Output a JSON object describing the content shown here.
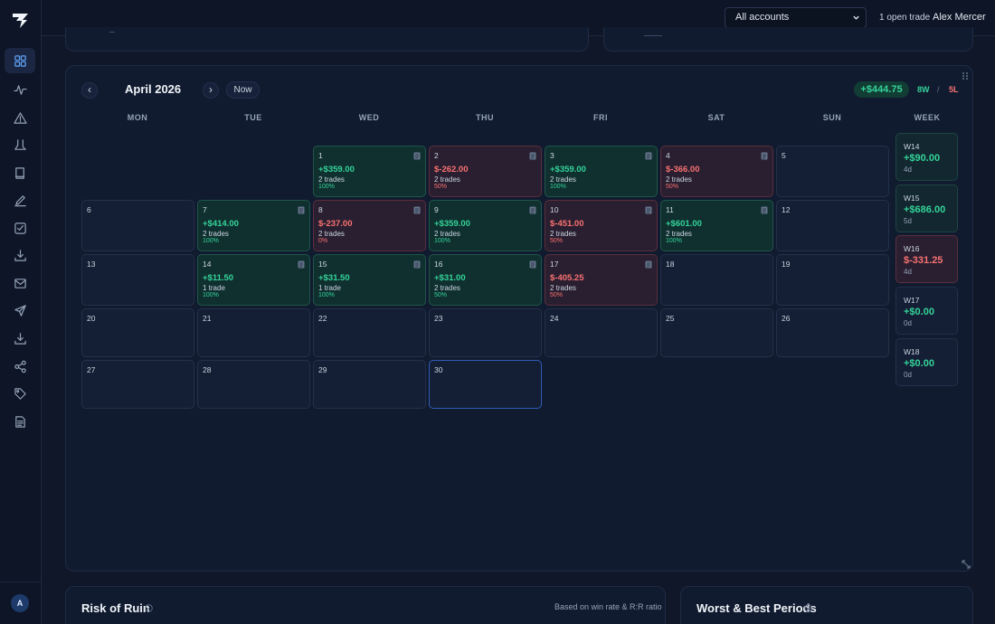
{
  "topbar": {
    "account_select": "All accounts",
    "open_trade": "1 open trade",
    "user_name": "Alex Mercer"
  },
  "sidebar": {
    "avatar_initial": "A",
    "items": [
      {
        "icon": "grid-icon",
        "active": true
      },
      {
        "icon": "activity-icon",
        "active": false
      },
      {
        "icon": "warning-triangle-icon",
        "active": false
      },
      {
        "icon": "flask-icon",
        "active": false
      },
      {
        "icon": "book-icon",
        "active": false
      },
      {
        "icon": "pencil-icon",
        "active": false
      },
      {
        "icon": "checkbox-icon",
        "active": false
      },
      {
        "icon": "download-icon",
        "active": false
      },
      {
        "icon": "mail-icon",
        "active": false
      },
      {
        "icon": "send-icon",
        "active": false
      },
      {
        "icon": "import-icon",
        "active": false
      },
      {
        "icon": "share-icon",
        "active": false
      },
      {
        "icon": "tag-icon",
        "active": false
      },
      {
        "icon": "document-icon",
        "active": false
      }
    ]
  },
  "calendar": {
    "prev": "‹",
    "next": "›",
    "month": "April 2026",
    "now_label": "Now",
    "total": "+$444.75",
    "wins": "8W",
    "slash": "/",
    "losses": "5L",
    "days_of_week": [
      "MON",
      "TUE",
      "WED",
      "THU",
      "FRI",
      "SAT",
      "SUN",
      "WEEK"
    ],
    "days": [
      {
        "day": "1",
        "pnl": "+$359.00",
        "trades": "2 trades",
        "rate": "100%",
        "result": "win"
      },
      {
        "day": "2",
        "pnl": "$-262.00",
        "trades": "2 trades",
        "rate": "50%",
        "result": "loss"
      },
      {
        "day": "3",
        "pnl": "+$359.00",
        "trades": "2 trades",
        "rate": "100%",
        "result": "win"
      },
      {
        "day": "4",
        "pnl": "$-366.00",
        "trades": "2 trades",
        "rate": "50%",
        "result": "loss"
      },
      {
        "day": "5"
      },
      {
        "day": "6"
      },
      {
        "day": "7",
        "pnl": "+$414.00",
        "trades": "2 trades",
        "rate": "100%",
        "result": "win"
      },
      {
        "day": "8",
        "pnl": "$-237.00",
        "trades": "2 trades",
        "rate": "0%",
        "result": "loss"
      },
      {
        "day": "9",
        "pnl": "+$359.00",
        "trades": "2 trades",
        "rate": "100%",
        "result": "win"
      },
      {
        "day": "10",
        "pnl": "$-451.00",
        "trades": "2 trades",
        "rate": "50%",
        "result": "loss"
      },
      {
        "day": "11",
        "pnl": "+$601.00",
        "trades": "2 trades",
        "rate": "100%",
        "result": "win"
      },
      {
        "day": "12"
      },
      {
        "day": "13"
      },
      {
        "day": "14",
        "pnl": "+$11.50",
        "trades": "1 trade",
        "rate": "100%",
        "result": "win"
      },
      {
        "day": "15",
        "pnl": "+$31.50",
        "trades": "1 trade",
        "rate": "100%",
        "result": "win"
      },
      {
        "day": "16",
        "pnl": "+$31.00",
        "trades": "2 trades",
        "rate": "50%",
        "result": "win"
      },
      {
        "day": "17",
        "pnl": "$-405.25",
        "trades": "2 trades",
        "rate": "50%",
        "result": "loss"
      },
      {
        "day": "18"
      },
      {
        "day": "19"
      },
      {
        "day": "20"
      },
      {
        "day": "21"
      },
      {
        "day": "22"
      },
      {
        "day": "23"
      },
      {
        "day": "24"
      },
      {
        "day": "25"
      },
      {
        "day": "26"
      },
      {
        "day": "27"
      },
      {
        "day": "28"
      },
      {
        "day": "29"
      },
      {
        "day": "30",
        "today": true
      }
    ],
    "weeks": [
      {
        "label": "W14",
        "pnl": "+$90.00",
        "days": "4d",
        "result": "win"
      },
      {
        "label": "W15",
        "pnl": "+$686.00",
        "days": "5d",
        "result": "win"
      },
      {
        "label": "W16",
        "pnl": "$-331.25",
        "days": "4d",
        "result": "loss"
      },
      {
        "label": "W17",
        "pnl": "+$0.00",
        "days": "0d",
        "result": "flat"
      },
      {
        "label": "W18",
        "pnl": "+$0.00",
        "days": "0d",
        "result": "flat"
      }
    ]
  },
  "risk_of_ruin": {
    "title": "Risk of Ruin",
    "note": "Based on win rate & R:R ratio"
  },
  "periods": {
    "title": "Worst & Best Periods"
  }
}
